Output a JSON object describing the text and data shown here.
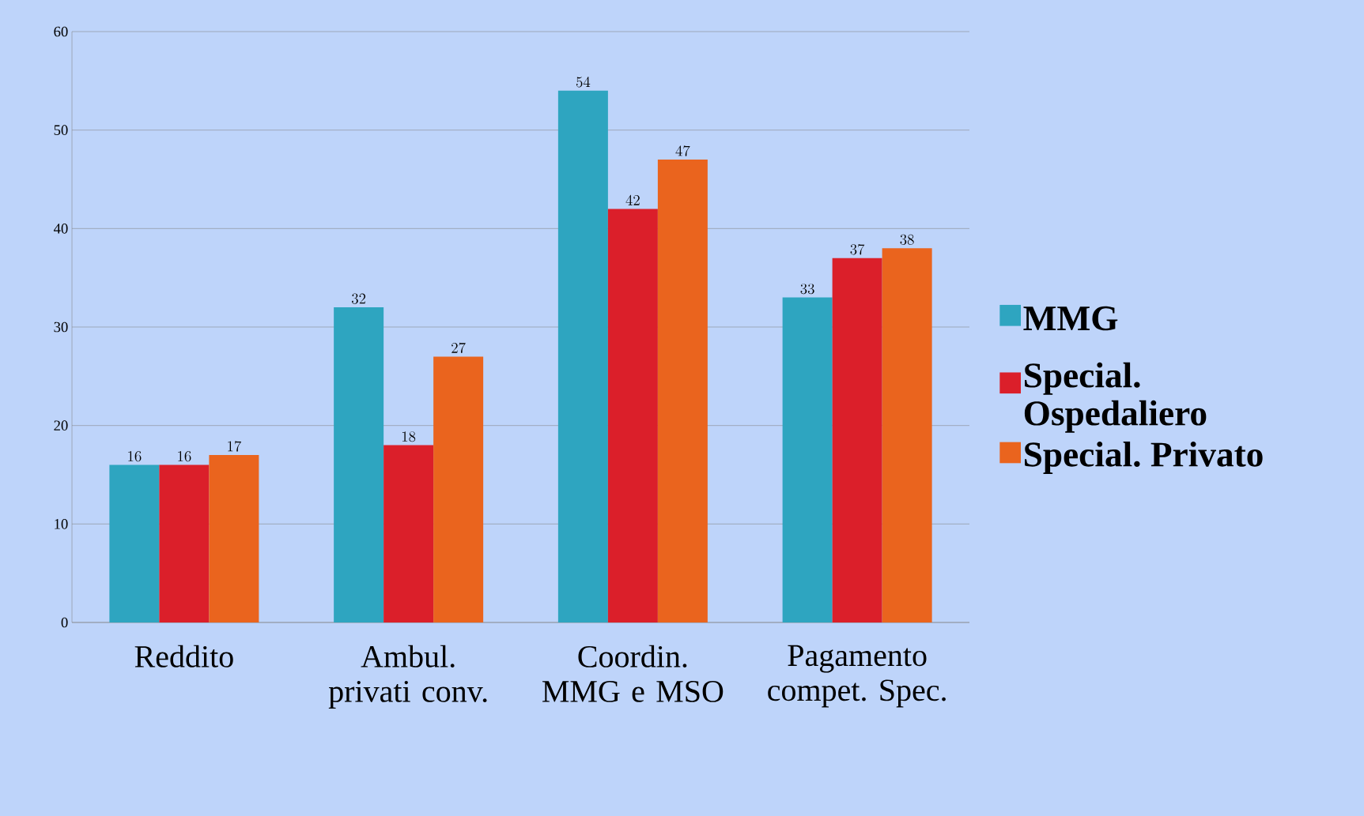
{
  "chart_data": {
    "type": "bar",
    "categories": [
      "Reddito",
      "Ambul. privati conv.",
      "Coordin. MMG e MSO",
      "Pagamento compet. Spec."
    ],
    "series": [
      {
        "name": "MMG",
        "color": "#2ea5c0",
        "values": [
          16,
          32,
          54,
          33
        ]
      },
      {
        "name": "Special. Ospedaliero",
        "color": "#db1f2a",
        "values": [
          16,
          18,
          42,
          37
        ]
      },
      {
        "name": "Special. Privato",
        "color": "#ea641e",
        "values": [
          17,
          27,
          47,
          38
        ]
      }
    ],
    "ylim": [
      0,
      60
    ],
    "yticks": [
      0,
      10,
      20,
      30,
      40,
      50,
      60
    ],
    "grid": "y",
    "legend": "right",
    "data_labels": true
  }
}
